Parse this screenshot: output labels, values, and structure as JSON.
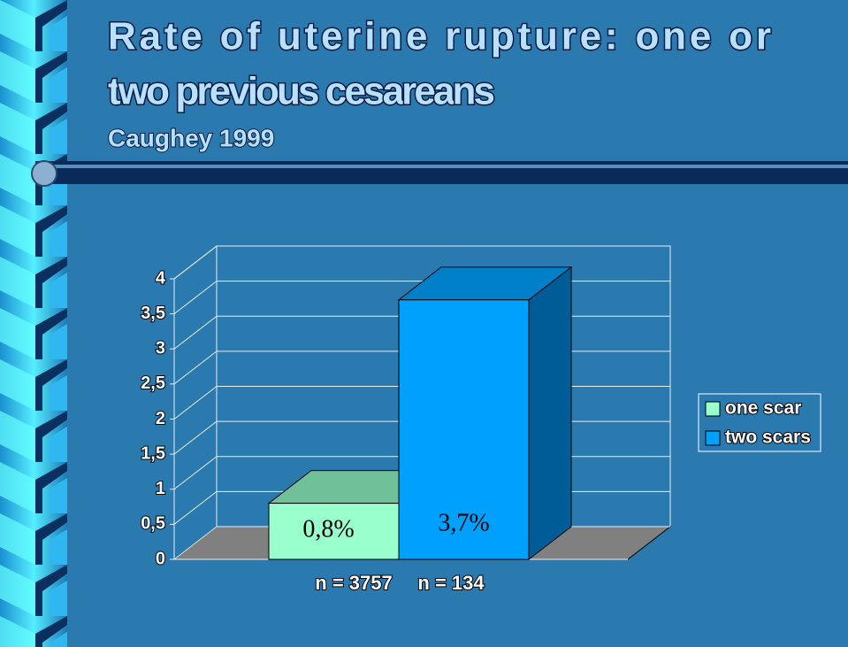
{
  "chart_data": {
    "type": "bar3d",
    "title": "Rate of uterine rupture: one or two previous cesareans",
    "subtitle": "Caughey 1999",
    "series": [
      {
        "name": "one scar",
        "color": "#99ffcc",
        "values": [
          0.8
        ],
        "value_labels": [
          "0,8%"
        ]
      },
      {
        "name": "two scars",
        "color": "#00a0ff",
        "values": [
          3.7
        ],
        "value_labels": [
          "3,7%"
        ]
      }
    ],
    "annotations": [
      "n = 3757",
      "n = 134"
    ],
    "ylim": [
      0,
      4
    ],
    "yticks": [
      0,
      {
        "value": 0.5,
        "label": "0,5"
      },
      1,
      {
        "value": 1.5,
        "label": "1,5"
      },
      2,
      {
        "value": 2.5,
        "label": "2,5"
      },
      3,
      {
        "value": 3.5,
        "label": "3,5"
      },
      4
    ],
    "grid": true
  }
}
